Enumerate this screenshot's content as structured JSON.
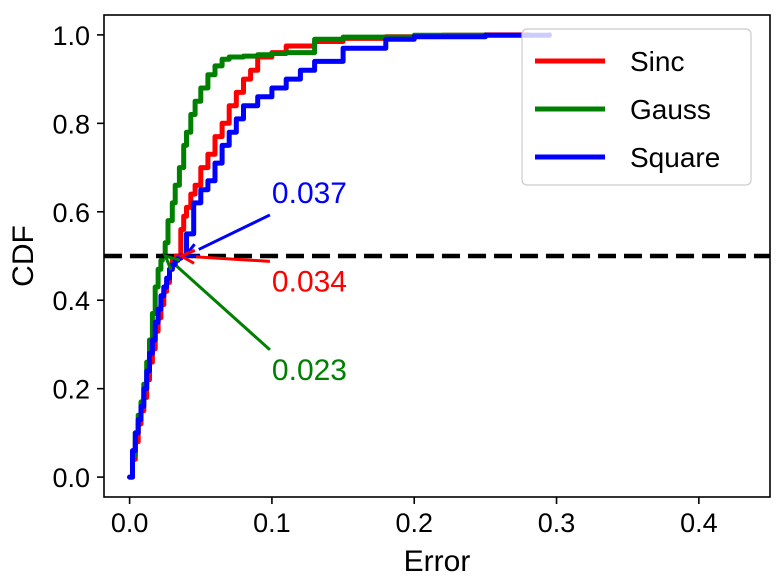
{
  "chart_data": {
    "type": "line",
    "xlabel": "Error",
    "ylabel": "CDF",
    "xlim": [
      -0.018,
      0.45
    ],
    "ylim": [
      -0.045,
      1.045
    ],
    "xticks": [
      0.0,
      0.1,
      0.2,
      0.3,
      0.4
    ],
    "xtick_labels": [
      "0.0",
      "0.1",
      "0.2",
      "0.3",
      "0.4"
    ],
    "yticks": [
      0.0,
      0.2,
      0.4,
      0.6,
      0.8,
      1.0
    ],
    "ytick_labels": [
      "0.0",
      "0.2",
      "0.4",
      "0.6",
      "0.8",
      "1.0"
    ],
    "grid": false,
    "legend_position": "top-right",
    "reference_line": {
      "y": 0.5,
      "style": "dashed",
      "color": "#000000"
    },
    "series": [
      {
        "name": "Sinc",
        "color": "#ff0000",
        "x": [
          0.0,
          0.002,
          0.004,
          0.006,
          0.008,
          0.01,
          0.012,
          0.014,
          0.016,
          0.018,
          0.02,
          0.022,
          0.024,
          0.026,
          0.028,
          0.03,
          0.032,
          0.034,
          0.036,
          0.038,
          0.04,
          0.043,
          0.046,
          0.05,
          0.055,
          0.06,
          0.065,
          0.07,
          0.075,
          0.08,
          0.085,
          0.09,
          0.1,
          0.11,
          0.13,
          0.15,
          0.18,
          0.2,
          0.22,
          0.25,
          0.28
        ],
        "y": [
          0.0,
          0.04,
          0.08,
          0.12,
          0.15,
          0.18,
          0.22,
          0.26,
          0.29,
          0.33,
          0.36,
          0.39,
          0.42,
          0.44,
          0.47,
          0.49,
          0.5,
          0.5,
          0.56,
          0.59,
          0.61,
          0.64,
          0.66,
          0.7,
          0.73,
          0.77,
          0.8,
          0.84,
          0.87,
          0.9,
          0.92,
          0.95,
          0.96,
          0.975,
          0.985,
          0.992,
          0.996,
          0.998,
          0.999,
          1.0,
          1.0
        ]
      },
      {
        "name": "Gauss",
        "color": "#008000",
        "x": [
          0.0,
          0.002,
          0.004,
          0.006,
          0.008,
          0.01,
          0.012,
          0.014,
          0.016,
          0.018,
          0.02,
          0.022,
          0.023,
          0.025,
          0.027,
          0.03,
          0.032,
          0.035,
          0.038,
          0.04,
          0.043,
          0.046,
          0.05,
          0.055,
          0.06,
          0.065,
          0.07,
          0.08,
          0.09,
          0.1,
          0.11,
          0.13,
          0.15,
          0.2,
          0.25
        ],
        "y": [
          0.0,
          0.05,
          0.1,
          0.14,
          0.17,
          0.21,
          0.26,
          0.31,
          0.37,
          0.43,
          0.47,
          0.49,
          0.5,
          0.53,
          0.58,
          0.62,
          0.66,
          0.7,
          0.75,
          0.78,
          0.82,
          0.85,
          0.88,
          0.91,
          0.93,
          0.945,
          0.95,
          0.952,
          0.955,
          0.958,
          0.96,
          0.99,
          0.995,
          0.999,
          1.0
        ]
      },
      {
        "name": "Square",
        "color": "#0000ff",
        "x": [
          0.0,
          0.002,
          0.004,
          0.006,
          0.008,
          0.01,
          0.012,
          0.014,
          0.016,
          0.018,
          0.02,
          0.022,
          0.024,
          0.026,
          0.028,
          0.03,
          0.032,
          0.034,
          0.036,
          0.037,
          0.04,
          0.045,
          0.05,
          0.055,
          0.06,
          0.065,
          0.07,
          0.075,
          0.08,
          0.09,
          0.1,
          0.11,
          0.12,
          0.13,
          0.15,
          0.18,
          0.2,
          0.25,
          0.295
        ],
        "y": [
          0.0,
          0.06,
          0.1,
          0.13,
          0.16,
          0.2,
          0.24,
          0.28,
          0.31,
          0.35,
          0.38,
          0.41,
          0.43,
          0.45,
          0.47,
          0.48,
          0.49,
          0.495,
          0.5,
          0.5,
          0.55,
          0.62,
          0.65,
          0.67,
          0.71,
          0.75,
          0.78,
          0.81,
          0.84,
          0.86,
          0.88,
          0.9,
          0.92,
          0.94,
          0.97,
          0.99,
          0.996,
          0.999,
          1.0
        ]
      }
    ],
    "annotations": [
      {
        "text": "0.037",
        "color": "#0000ff",
        "x": 0.037,
        "y": 0.5,
        "text_x": 0.1,
        "text_y": 0.62
      },
      {
        "text": "0.034",
        "color": "#ff0000",
        "x": 0.034,
        "y": 0.5,
        "text_x": 0.1,
        "text_y": 0.42
      },
      {
        "text": "0.023",
        "color": "#008000",
        "x": 0.023,
        "y": 0.5,
        "text_x": 0.1,
        "text_y": 0.22
      }
    ]
  }
}
